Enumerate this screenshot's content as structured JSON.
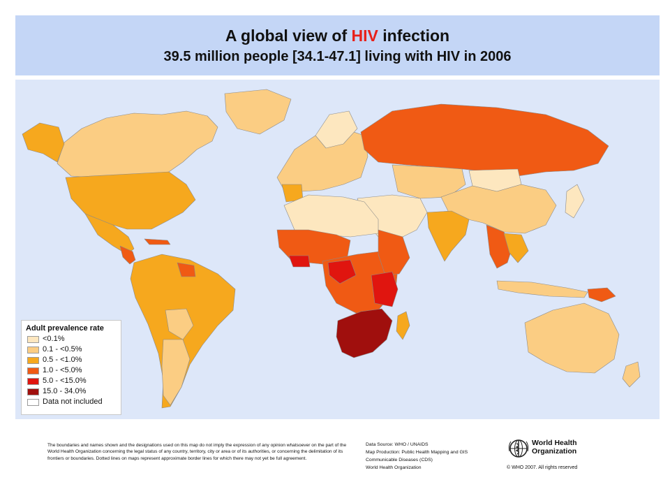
{
  "title": {
    "line1_prefix": "A global view of ",
    "line1_highlight": "HIV",
    "line1_suffix": " infection",
    "line2": "39.5 million people [34.1-47.1] living with HIV in 2006"
  },
  "legend": {
    "title": "Adult prevalence rate",
    "items": [
      {
        "label": "<0.1%",
        "color": "#fde7bf"
      },
      {
        "label": "0.1 - <0.5%",
        "color": "#fbcd83"
      },
      {
        "label": "0.5 - <1.0%",
        "color": "#f6a81e"
      },
      {
        "label": "1.0 - <5.0%",
        "color": "#f05a14"
      },
      {
        "label": "5.0 - <15.0%",
        "color": "#e0150f"
      },
      {
        "label": "15.0 - 34.0%",
        "color": "#a00f0d"
      },
      {
        "label": "Data not included",
        "color": "#ffffff"
      }
    ]
  },
  "colors": {
    "header_bg": "#c4d6f6",
    "ocean": "#dde7f9",
    "highlight": "#e8201a",
    "grey_no_data": "#c9c9c9"
  },
  "footer": {
    "disclaimer": "The boundaries and names shown and the designations used on this map do not imply the expression of any opinion whatsoever on the part of the World Health Organization concerning the legal status of any country, territory, city or area or of its authorities, or concerning the delimitation of its frontiers or boundaries.  Dotted lines on maps represent approximate border lines for which there may not yet be full agreement.",
    "source_lines": [
      "Data Source: WHO / UNAIDS",
      "Map Production: Public Health Mapping and GIS",
      "Communicable Diseases (CDS)",
      "World Health Organization"
    ],
    "org_line1": "World Health",
    "org_line2": "Organization",
    "copyright": "© WHO 2007. All rights reserved"
  }
}
